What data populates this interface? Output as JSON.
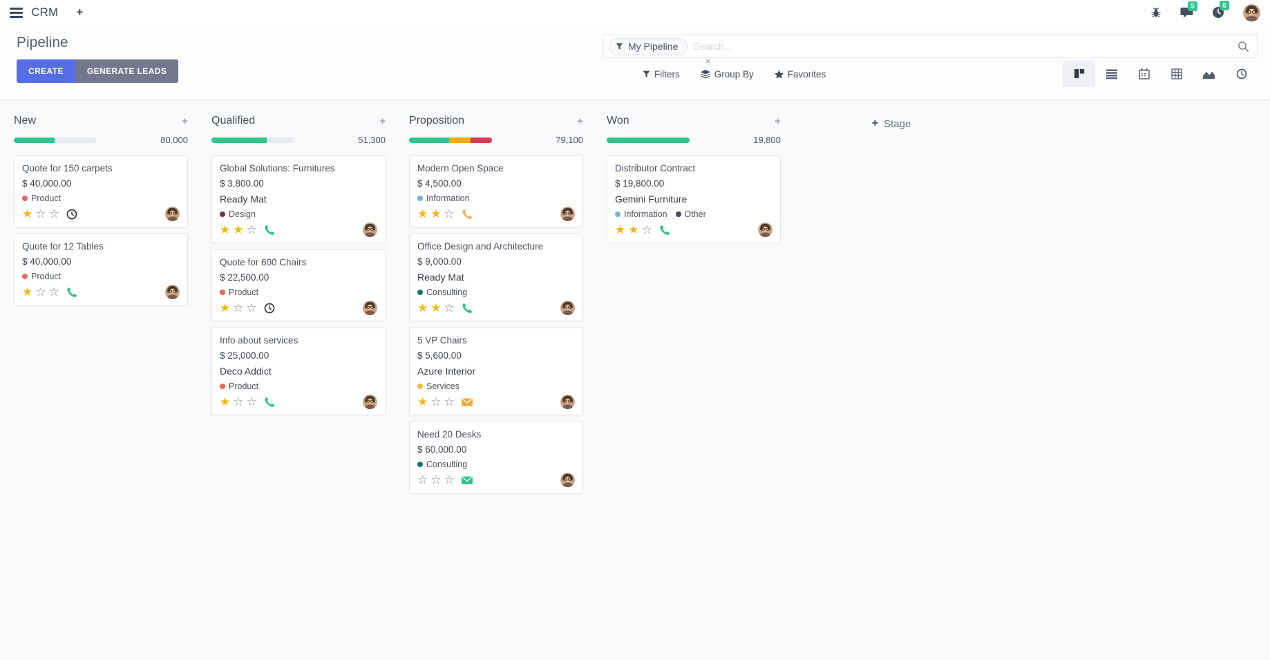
{
  "ui": {
    "plus": "+",
    "star_filled": "★",
    "star_empty": "☆"
  },
  "colors": {
    "accent": "#556ee6",
    "secondary": "#74788d",
    "badge_green": "#34c38f",
    "progress_green": "#33c48d",
    "progress_orange": "#f9a80a",
    "progress_red": "#d8394c"
  },
  "icons": {
    "menu": "hamburger-bars",
    "app_plus": "plus",
    "bug": "bug",
    "messages": "speech-bubble",
    "activities": "clock",
    "avatar": "user-photo",
    "facet": "funnel",
    "search": "magnifier",
    "filters": "funnel",
    "group_by": "layers",
    "favorites": "star",
    "views": [
      "kanban",
      "list",
      "calendar",
      "pivot",
      "graph",
      "activity-clock"
    ]
  },
  "navbar": {
    "app_name": "CRM",
    "systray": {
      "message_badge": "5",
      "activity_badge": "6"
    }
  },
  "control_panel": {
    "title": "Pipeline",
    "buttons": {
      "create": "CREATE",
      "generate_leads": "GENERATE LEADS"
    },
    "search": {
      "facet_label": "My Pipeline",
      "facet_remove": "×",
      "placeholder": "Search..."
    },
    "menus": {
      "filters": "Filters",
      "group_by": "Group By",
      "favorites": "Favorites"
    }
  },
  "board": {
    "add_stage": "Stage",
    "columns": [
      {
        "name": "New",
        "total": "80,000",
        "progress": [
          {
            "color": "#33c48d",
            "pct": 49
          }
        ],
        "cards": [
          {
            "title": "Quote for 150 carpets",
            "amount": "$ 40,000.00",
            "tags": [
              {
                "label": "Product",
                "color": "#e7685c"
              }
            ],
            "stars": 1,
            "activity_icon": "clock",
            "activity_color": "#32373e"
          },
          {
            "title": "Quote for 12 Tables",
            "amount": "$ 40,000.00",
            "tags": [
              {
                "label": "Product",
                "color": "#e7685c"
              }
            ],
            "stars": 1,
            "activity_icon": "phone",
            "activity_color": "#2fc38c"
          }
        ]
      },
      {
        "name": "Qualified",
        "total": "51,300",
        "progress": [
          {
            "color": "#33c48d",
            "pct": 67
          }
        ],
        "cards": [
          {
            "title": "Global Solutions: Furnitures",
            "amount": "$ 3,800.00",
            "partner": "Ready Mat",
            "tags": [
              {
                "label": "Design",
                "color": "#6b3a57"
              }
            ],
            "stars": 2,
            "activity_icon": "phone",
            "activity_color": "#2fc38c"
          },
          {
            "title": "Quote for 600 Chairs",
            "amount": "$ 22,500.00",
            "tags": [
              {
                "label": "Product",
                "color": "#e7685c"
              }
            ],
            "stars": 1,
            "activity_icon": "clock",
            "activity_color": "#32373e"
          },
          {
            "title": "Info about services",
            "amount": "$ 25,000.00",
            "partner": "Deco Addict",
            "tags": [
              {
                "label": "Product",
                "color": "#e7685c"
              }
            ],
            "stars": 1,
            "activity_icon": "phone",
            "activity_color": "#2fc38c"
          }
        ]
      },
      {
        "name": "Proposition",
        "total": "79,100",
        "progress": [
          {
            "color": "#33c48d",
            "pct": 48
          },
          {
            "color": "#f9a80a",
            "pct": 26
          },
          {
            "color": "#d8394c",
            "pct": 26
          }
        ],
        "cards": [
          {
            "title": "Modern Open Space",
            "amount": "$ 4,500.00",
            "tags": [
              {
                "label": "Information",
                "color": "#6fb1e4"
              }
            ],
            "stars": 2,
            "activity_icon": "phone",
            "activity_color": "#f2b464"
          },
          {
            "title": "Office Design and Architecture",
            "amount": "$ 9,000.00",
            "partner": "Ready Mat",
            "tags": [
              {
                "label": "Consulting",
                "color": "#176e7b"
              }
            ],
            "stars": 2,
            "activity_icon": "phone",
            "activity_color": "#2fc38c"
          },
          {
            "title": "5 VP Chairs",
            "amount": "$ 5,600.00",
            "partner": "Azure Interior",
            "tags": [
              {
                "label": "Services",
                "color": "#edbe3d"
              }
            ],
            "stars": 1,
            "activity_icon": "envelope",
            "activity_color": "#eda93f"
          },
          {
            "title": "Need 20 Desks",
            "amount": "$ 60,000.00",
            "tags": [
              {
                "label": "Consulting",
                "color": "#176e7b"
              }
            ],
            "stars": 0,
            "activity_icon": "envelope",
            "activity_color": "#2fc38c"
          }
        ]
      },
      {
        "name": "Won",
        "total": "19,800",
        "progress": [
          {
            "color": "#33c48d",
            "pct": 100
          }
        ],
        "cards": [
          {
            "title": "Distributor Contract",
            "amount": "$ 19,800.00",
            "partner": "Gemini Furniture",
            "tags": [
              {
                "label": "Information",
                "color": "#6fb1e4"
              },
              {
                "label": "Other",
                "color": "#3d4b66"
              }
            ],
            "stars": 2,
            "activity_icon": "phone",
            "activity_color": "#2fc38c"
          }
        ]
      }
    ]
  }
}
